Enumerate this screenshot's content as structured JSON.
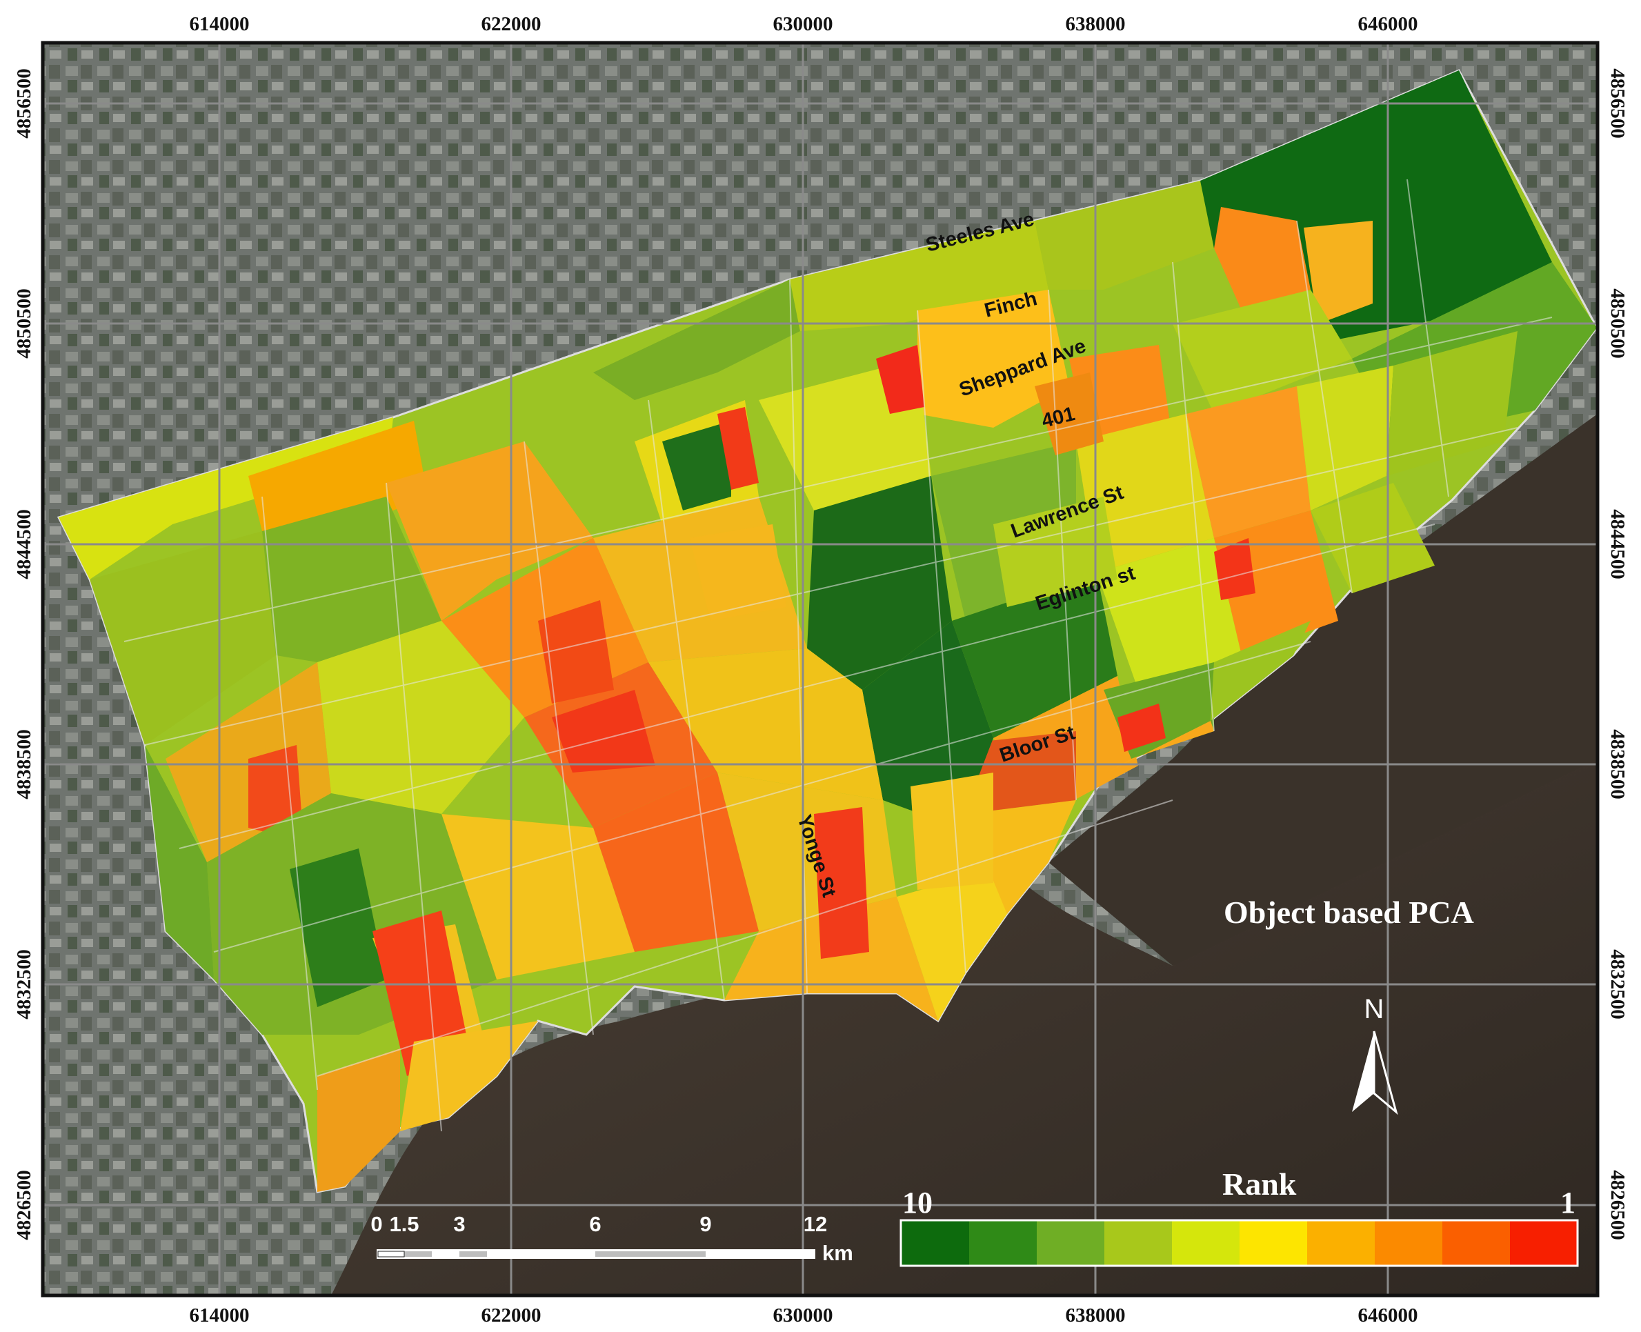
{
  "map": {
    "title": "Object based PCA",
    "x_ticks": [
      "614000",
      "622000",
      "630000",
      "638000",
      "646000"
    ],
    "y_ticks": [
      "4856500",
      "4850500",
      "4844500",
      "4838500",
      "4832500",
      "4826500"
    ],
    "roads": {
      "steeles": "Steeles Ave",
      "finch": "Finch",
      "sheppard": "Sheppard Ave",
      "hwy401": "401",
      "lawrence": "Lawrence St",
      "eglinton": "Eglinton st",
      "bloor": "Bloor St",
      "yonge": "Yonge St"
    },
    "legend": {
      "title": "Rank",
      "high_label": "10",
      "low_label": "1",
      "colors": [
        "#0d6b0d",
        "#2f8a17",
        "#6fae25",
        "#a8c81b",
        "#d5e60c",
        "#fde500",
        "#fbb000",
        "#fb8a00",
        "#fa5f00",
        "#f71f00"
      ]
    },
    "scale_bar": {
      "labels": [
        "0",
        "1.5",
        "3",
        "6",
        "9",
        "12"
      ],
      "unit": "km"
    },
    "north_label": "N"
  }
}
